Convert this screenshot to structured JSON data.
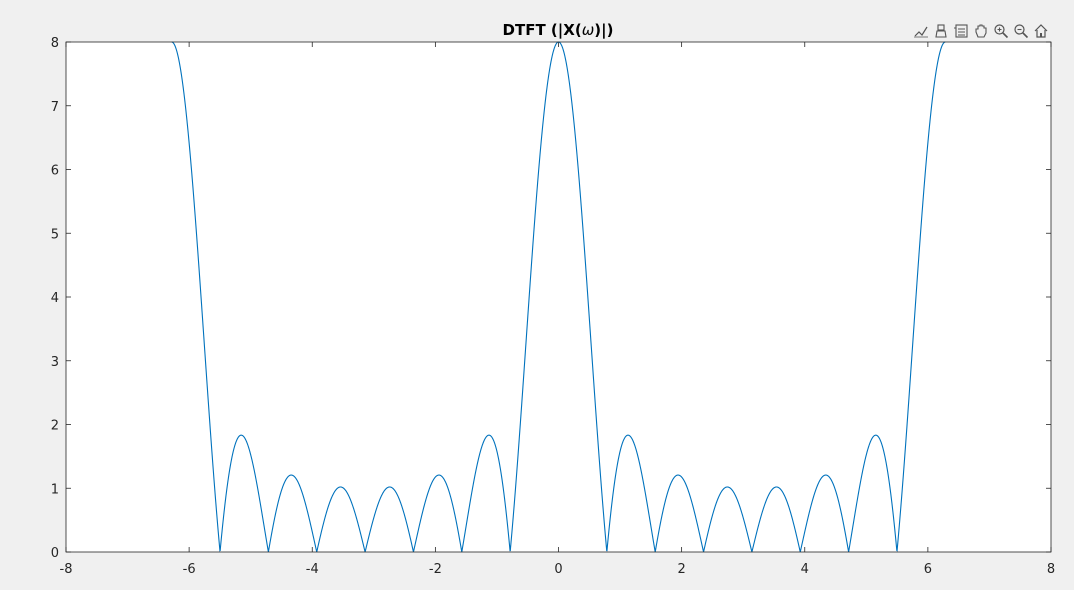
{
  "toolbar": {
    "buttons": [
      "brush-icon",
      "data-tips-icon",
      "legend-icon",
      "pan-icon",
      "zoom-in-icon",
      "zoom-out-icon",
      "home-icon"
    ]
  },
  "chart_data": {
    "type": "line",
    "title": "DTFT (|X(ω)|)",
    "title_prefix": "DTFT (|X(",
    "title_symbol": "ω",
    "title_suffix": ")|)",
    "xlabel": "",
    "ylabel": "",
    "xlim": [
      -8,
      8
    ],
    "ylim": [
      0,
      8
    ],
    "xticks": [
      "-8",
      "-6",
      "-4",
      "-2",
      "0",
      "2",
      "4",
      "6",
      "8"
    ],
    "yticks": [
      "0",
      "1",
      "2",
      "3",
      "4",
      "5",
      "6",
      "7",
      "8"
    ],
    "grid": false,
    "line_color": "#0072BD",
    "series": [
      {
        "expression": "|sin(4ω)/sin(ω/2)|",
        "x_range": [
          -6.283,
          6.283
        ]
      }
    ],
    "key_points": [
      {
        "x": -6.283,
        "y": 8
      },
      {
        "x": -5.498,
        "y": 0
      },
      {
        "x": -5.2,
        "y": 1.82
      },
      {
        "x": -4.712,
        "y": 0
      },
      {
        "x": -4.35,
        "y": 1.2
      },
      {
        "x": -3.927,
        "y": 0
      },
      {
        "x": -3.55,
        "y": 1.0
      },
      {
        "x": -3.142,
        "y": 0
      },
      {
        "x": -2.75,
        "y": 1.0
      },
      {
        "x": -2.356,
        "y": 0
      },
      {
        "x": -1.95,
        "y": 1.2
      },
      {
        "x": -1.571,
        "y": 0
      },
      {
        "x": -1.13,
        "y": 1.82
      },
      {
        "x": -0.785,
        "y": 0
      },
      {
        "x": 0,
        "y": 8
      },
      {
        "x": 0.785,
        "y": 0
      },
      {
        "x": 1.13,
        "y": 1.82
      },
      {
        "x": 1.571,
        "y": 0
      },
      {
        "x": 1.95,
        "y": 1.2
      },
      {
        "x": 2.356,
        "y": 0
      },
      {
        "x": 2.75,
        "y": 1.0
      },
      {
        "x": 3.142,
        "y": 0
      },
      {
        "x": 3.55,
        "y": 1.0
      },
      {
        "x": 3.927,
        "y": 0
      },
      {
        "x": 4.35,
        "y": 1.2
      },
      {
        "x": 4.712,
        "y": 0
      },
      {
        "x": 5.2,
        "y": 1.82
      },
      {
        "x": 5.498,
        "y": 0
      },
      {
        "x": 6.283,
        "y": 8
      }
    ]
  }
}
